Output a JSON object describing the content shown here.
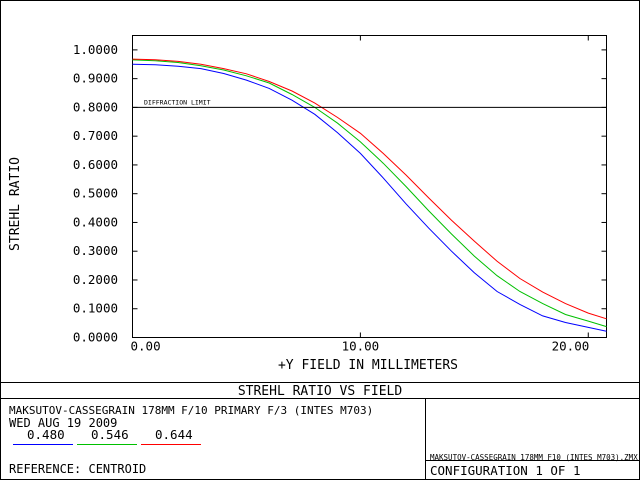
{
  "chart_data": {
    "type": "line",
    "title": "STREHL RATIO VS FIELD",
    "xlabel": "+Y FIELD IN MILLIMETERS",
    "ylabel": "STREHL RATIO",
    "xlim": [
      0,
      20.8
    ],
    "ylim": [
      0,
      1.05
    ],
    "x_ticks": [
      "0.00",
      "10.00",
      "20.00"
    ],
    "y_ticks": [
      "0.0000",
      "0.1000",
      "0.2000",
      "0.3000",
      "0.4000",
      "0.5000",
      "0.6000",
      "0.7000",
      "0.8000",
      "0.9000",
      "1.0000"
    ],
    "grid": false,
    "x": [
      0,
      1,
      2,
      3,
      4,
      5,
      6,
      7,
      8,
      9,
      10,
      11,
      12,
      13,
      14,
      15,
      16,
      17,
      18,
      19,
      20,
      20.8
    ],
    "series": [
      {
        "name": "0.480",
        "color": "#0000ff",
        "values": [
          0.95,
          0.948,
          0.943,
          0.935,
          0.918,
          0.895,
          0.866,
          0.825,
          0.776,
          0.712,
          0.64,
          0.555,
          0.465,
          0.38,
          0.3,
          0.225,
          0.16,
          0.115,
          0.075,
          0.052,
          0.035,
          0.022
        ]
      },
      {
        "name": "0.546",
        "color": "#00c000",
        "values": [
          0.965,
          0.962,
          0.956,
          0.945,
          0.93,
          0.91,
          0.885,
          0.845,
          0.8,
          0.745,
          0.68,
          0.606,
          0.525,
          0.44,
          0.36,
          0.283,
          0.215,
          0.16,
          0.118,
          0.08,
          0.057,
          0.038
        ]
      },
      {
        "name": "0.644",
        "color": "#ff0000",
        "values": [
          0.968,
          0.966,
          0.96,
          0.95,
          0.935,
          0.917,
          0.89,
          0.857,
          0.815,
          0.765,
          0.71,
          0.64,
          0.565,
          0.485,
          0.408,
          0.335,
          0.265,
          0.205,
          0.158,
          0.118,
          0.085,
          0.065
        ]
      }
    ],
    "reference_line": {
      "label": "DIFFRACTION LIMIT",
      "y": 0.8
    }
  },
  "info": {
    "lens_title": "MAKSUTOV-CASSEGRAIN 178MM F/10 PRIMARY F/3 (INTES M703)",
    "date": "WED AUG 19 2009",
    "reference": "REFERENCE: CENTROID",
    "file_label": "MAKSUTOV-CASSEGRAIN 178MM F10 (INTES M703).ZMX",
    "configuration": "CONFIGURATION 1 OF 1"
  }
}
